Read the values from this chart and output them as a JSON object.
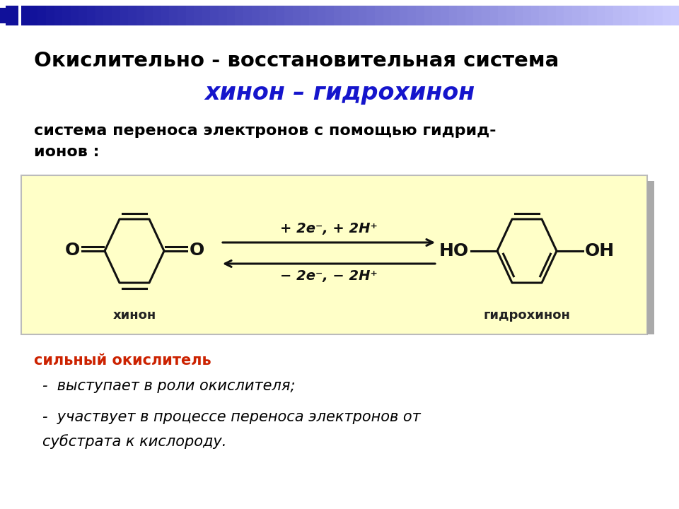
{
  "title_line1": "Окислительно - восстановительная система",
  "title_line2": "хинон – гидрохинон",
  "subtitle_line1": "система переноса электронов с помощью гидрид-",
  "subtitle_line2": "ионов :",
  "box_color": "#FFFFC8",
  "box_label_left": "хинон",
  "box_label_right": "гидрохинон",
  "arrow_top": "+ 2e⁻, + 2H⁺",
  "arrow_bottom": "− 2e⁻, − 2H⁺",
  "bold_text": "сильный окислитель",
  "bullet1": "-  выступает в роли окислителя;",
  "bullet2": "-  участвует в процессе переноса электронов от",
  "bullet2b": "субстрата к кислороду.",
  "bg_color": "#FFFFFF",
  "title_color": "#000000",
  "title2_color": "#1515CC",
  "bold_color": "#CC2200",
  "text_color": "#000000",
  "header_bar_color": "#10109A"
}
